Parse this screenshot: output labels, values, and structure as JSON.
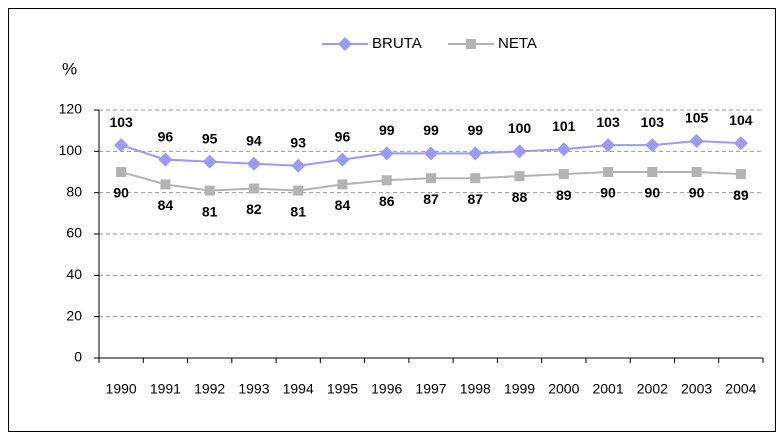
{
  "chart_data": {
    "type": "line",
    "y_label": "%",
    "categories": [
      "1990",
      "1991",
      "1992",
      "1993",
      "1994",
      "1995",
      "1996",
      "1997",
      "1998",
      "1999",
      "2000",
      "2001",
      "2002",
      "2003",
      "2004"
    ],
    "series": [
      {
        "name": "BRUTA",
        "color": "#9999ff",
        "marker": "diamond",
        "values": [
          103,
          96,
          95,
          94,
          93,
          96,
          99,
          99,
          99,
          100,
          101,
          103,
          103,
          105,
          104
        ]
      },
      {
        "name": "NETA",
        "color": "#b3b3b3",
        "marker": "square",
        "values": [
          90,
          84,
          81,
          82,
          81,
          84,
          86,
          87,
          87,
          88,
          89,
          90,
          90,
          90,
          89
        ]
      }
    ],
    "ylim": [
      0,
      120
    ],
    "yticks": [
      0,
      20,
      40,
      60,
      80,
      100,
      120
    ],
    "grid": true,
    "legend": "top"
  }
}
